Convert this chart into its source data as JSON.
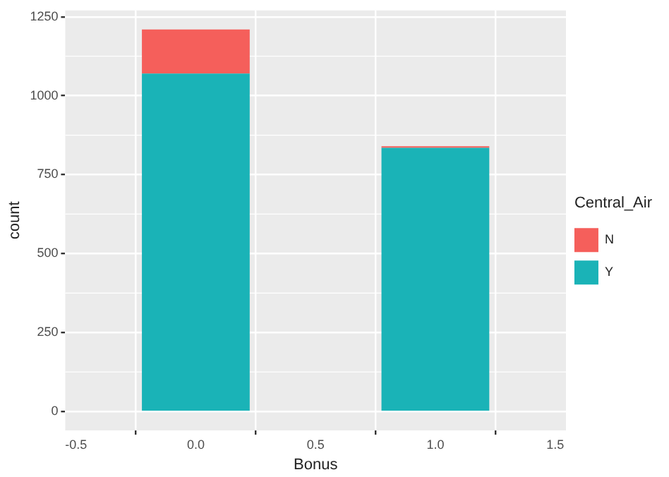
{
  "chart_data": {
    "type": "bar",
    "stacked": true,
    "xlabel": "Bonus",
    "ylabel": "count",
    "legend_title": "Central_Air",
    "legend": "right",
    "x": [
      0,
      1
    ],
    "series": [
      {
        "name": "Y",
        "color": "#1ab3b7",
        "values": [
          1070,
          835
        ]
      },
      {
        "name": "N",
        "color": "#f55f5b",
        "values": [
          140,
          5
        ]
      }
    ],
    "xlim": [
      -0.545,
      1.545
    ],
    "xticks": [
      {
        "value": -0.5,
        "label": "-0.5"
      },
      {
        "value": 0,
        "label": "0.0"
      },
      {
        "value": 0.5,
        "label": "0.5"
      },
      {
        "value": 1,
        "label": "1.0"
      },
      {
        "value": 1.5,
        "label": "1.5"
      }
    ],
    "ylim": [
      -60,
      1270
    ],
    "yticks": [
      0,
      250,
      500,
      750,
      1000,
      1250
    ],
    "grid": true
  }
}
